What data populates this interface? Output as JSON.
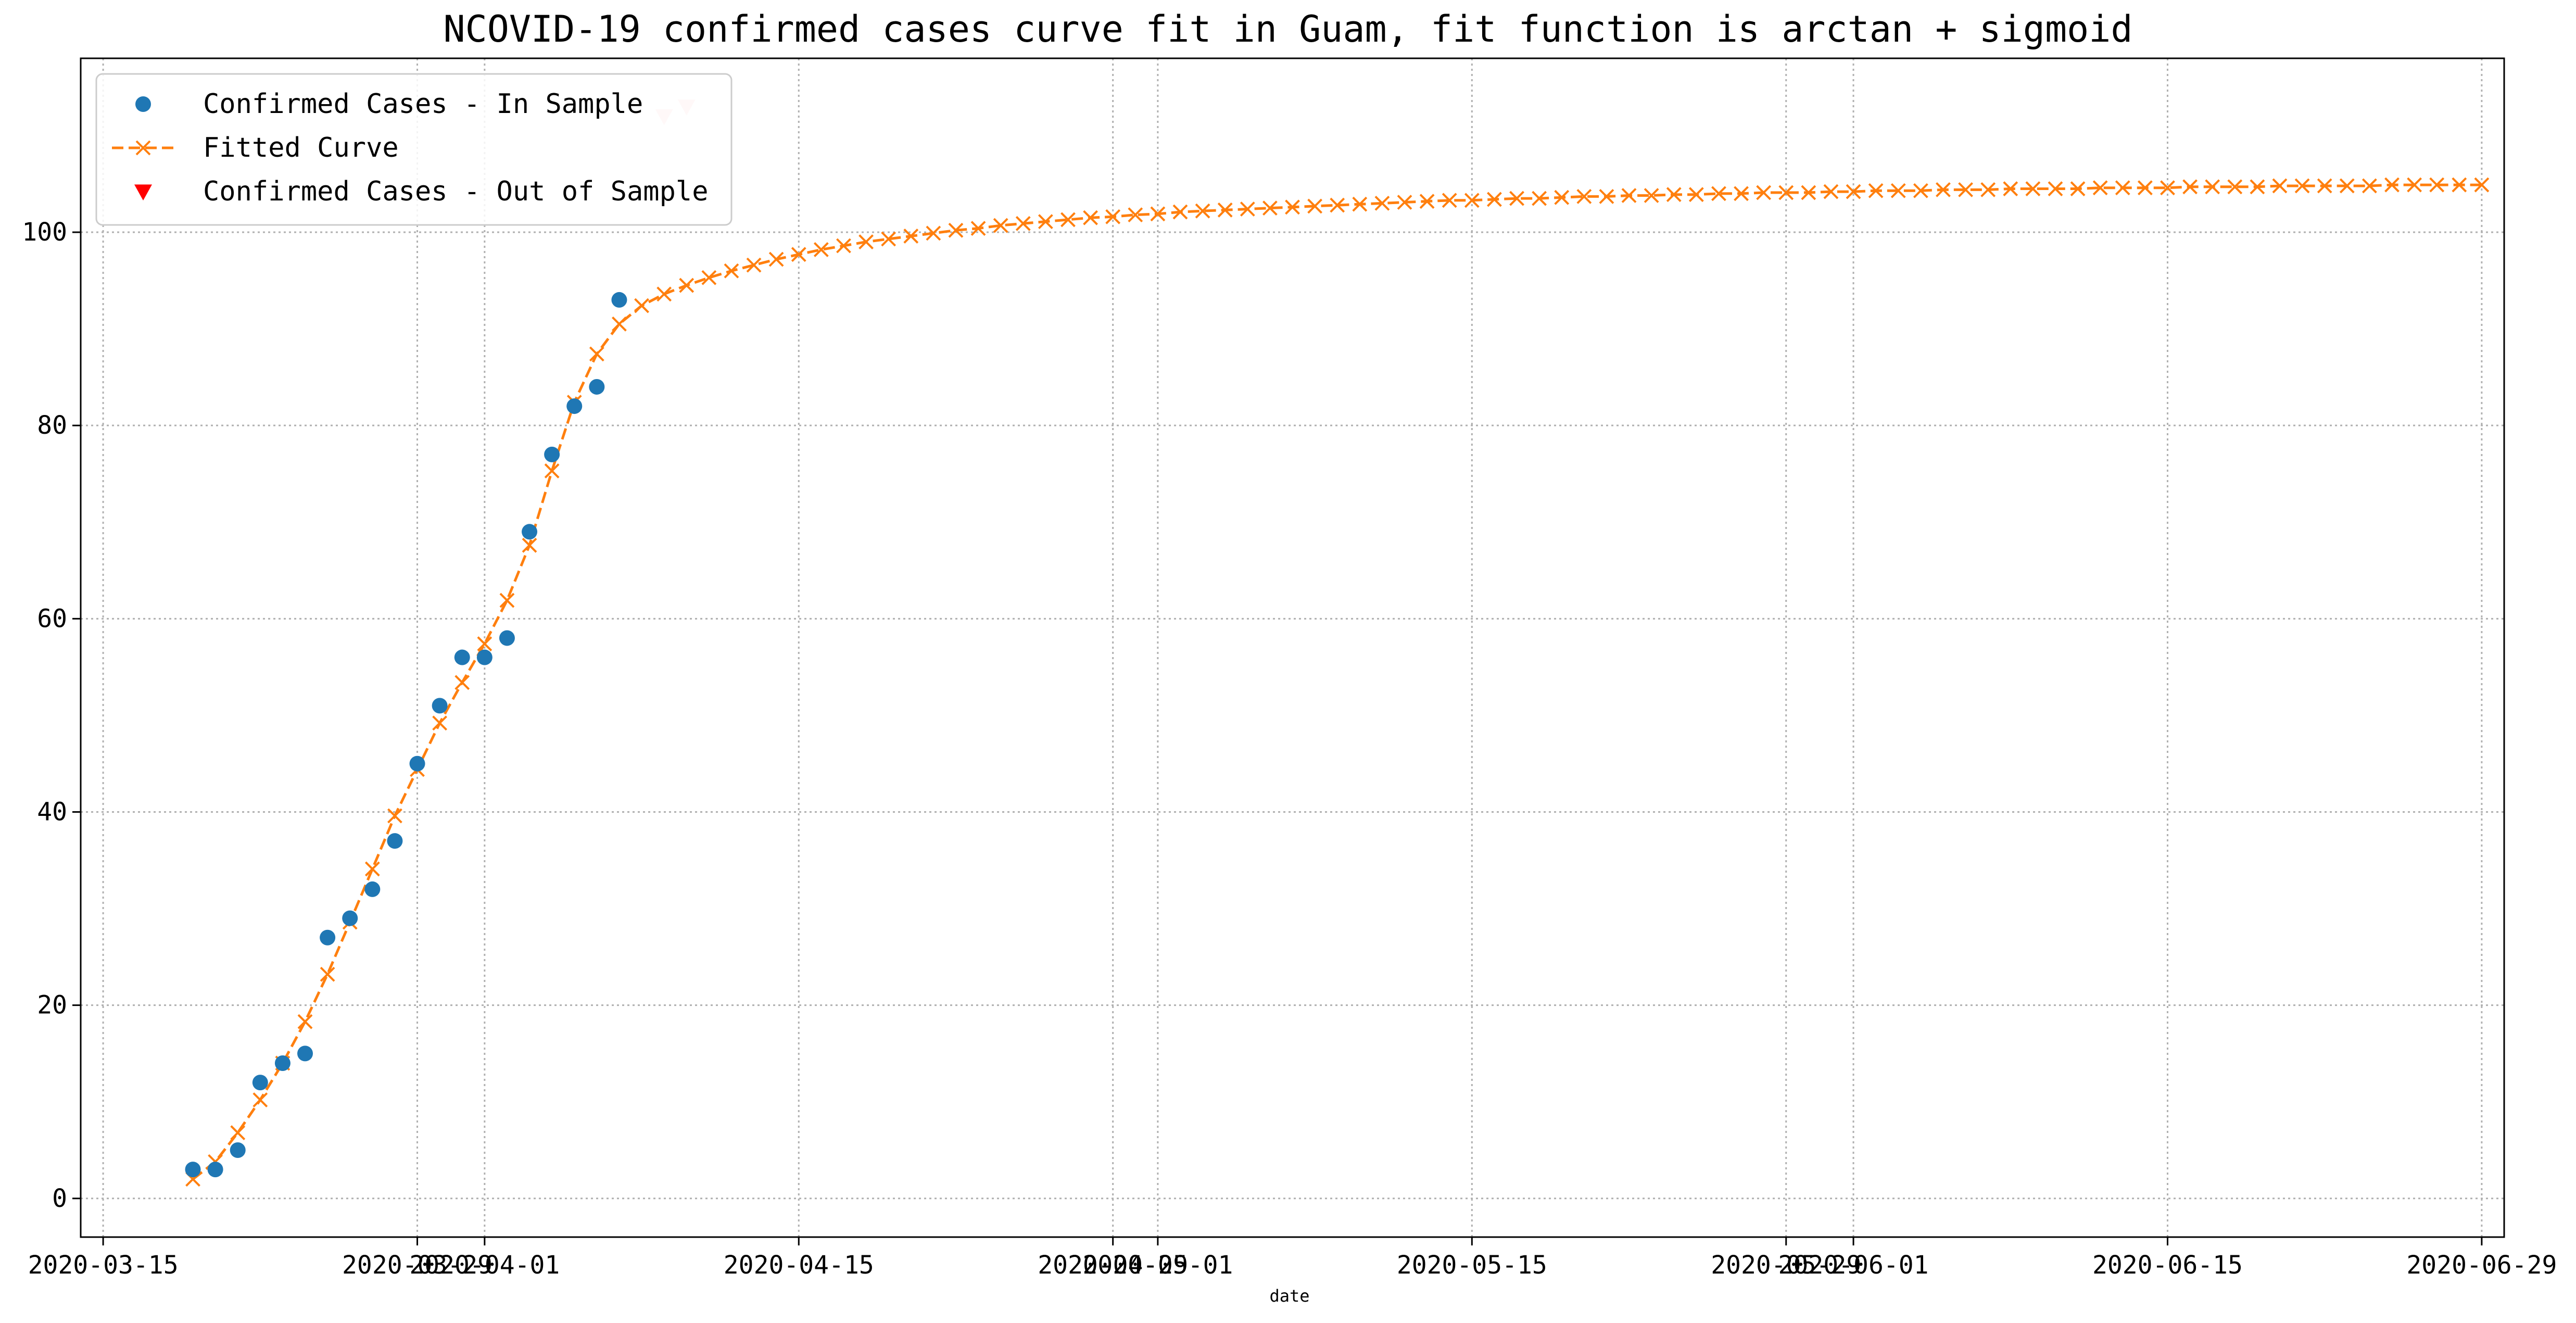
{
  "chart_data": {
    "type": "line",
    "title": "NCOVID-19 confirmed cases curve fit in Guam, fit function is arctan + sigmoid",
    "xlabel": "date",
    "ylabel": "",
    "xlim": [
      "2020-03-14",
      "2020-06-30"
    ],
    "ylim": [
      -4,
      118
    ],
    "x_ticks": [
      {
        "date": "2020-03-15",
        "label": "2020-03-15"
      },
      {
        "date": "2020-03-29",
        "label": "2020-03-29"
      },
      {
        "date": "2020-04-01",
        "label": "2020-04-01"
      },
      {
        "date": "2020-04-15",
        "label": "2020-04-15"
      },
      {
        "date": "2020-04-29",
        "label": "2020-04-29"
      },
      {
        "date": "2020-05-01",
        "label": "2020-05-01"
      },
      {
        "date": "2020-05-15",
        "label": "2020-05-15"
      },
      {
        "date": "2020-05-29",
        "label": "2020-05-29"
      },
      {
        "date": "2020-06-01",
        "label": "2020-06-01"
      },
      {
        "date": "2020-06-15",
        "label": "2020-06-15"
      },
      {
        "date": "2020-06-29",
        "label": "2020-06-29"
      }
    ],
    "y_ticks": [
      0,
      20,
      40,
      60,
      80,
      100
    ],
    "grid": true,
    "legend": {
      "position": "top-left",
      "entries": [
        "Confirmed Cases - In Sample",
        "Fitted Curve",
        "Confirmed Cases - Out of Sample"
      ]
    },
    "series": [
      {
        "name": "Confirmed Cases - In Sample",
        "kind": "scatter",
        "marker": "circle",
        "color": "#1f77b4",
        "x": [
          "2020-03-19",
          "2020-03-20",
          "2020-03-21",
          "2020-03-22",
          "2020-03-23",
          "2020-03-24",
          "2020-03-25",
          "2020-03-26",
          "2020-03-27",
          "2020-03-28",
          "2020-03-29",
          "2020-03-30",
          "2020-03-31",
          "2020-04-01",
          "2020-04-02",
          "2020-04-03",
          "2020-04-04",
          "2020-04-05",
          "2020-04-06"
        ],
        "y": [
          3,
          3,
          5,
          12,
          14,
          15,
          27,
          29,
          32,
          37,
          45,
          51,
          56,
          56,
          58,
          69,
          77,
          82,
          84
        ]
      },
      {
        "name": "Confirmed Cases - In Sample",
        "kind": "scatter",
        "marker": "circle",
        "color": "#1f77b4",
        "x": [
          "2020-04-07"
        ],
        "y": [
          93
        ]
      },
      {
        "name": "Fitted Curve",
        "kind": "line",
        "marker": "x",
        "dashed": true,
        "color": "#ff7f0e",
        "start_date": "2020-03-19",
        "y": [
          2.0,
          3.8,
          6.8,
          10.2,
          14.0,
          18.3,
          23.2,
          28.6,
          34.1,
          39.6,
          44.4,
          49.2,
          53.4,
          57.4,
          61.9,
          67.6,
          75.3,
          82.4,
          87.4,
          90.5,
          92.4,
          93.6,
          94.5,
          95.3,
          96.0,
          96.6,
          97.2,
          97.7,
          98.2,
          98.6,
          99.0,
          99.3,
          99.6,
          99.9,
          100.2,
          100.4,
          100.7,
          100.9,
          101.1,
          101.3,
          101.5,
          101.6,
          101.8,
          101.9,
          102.1,
          102.2,
          102.3,
          102.4,
          102.5,
          102.6,
          102.7,
          102.8,
          102.9,
          103.0,
          103.1,
          103.2,
          103.3,
          103.3,
          103.4,
          103.5,
          103.5,
          103.6,
          103.7,
          103.7,
          103.8,
          103.8,
          103.9,
          103.9,
          104.0,
          104.0,
          104.1,
          104.1,
          104.1,
          104.2,
          104.2,
          104.3,
          104.3,
          104.3,
          104.4,
          104.4,
          104.4,
          104.5,
          104.5,
          104.5,
          104.5,
          104.6,
          104.6,
          104.6,
          104.6,
          104.7,
          104.7,
          104.7,
          104.7,
          104.8,
          104.8,
          104.8,
          104.8,
          104.8,
          104.9,
          104.9,
          104.9,
          104.9,
          104.9
        ]
      },
      {
        "name": "Confirmed Cases - Out of Sample",
        "kind": "scatter",
        "marker": "triangle-down",
        "color": "#ff0000",
        "alpha": 0.18,
        "x": [
          "2020-04-09",
          "2020-04-10"
        ],
        "y": [
          112,
          113
        ]
      }
    ]
  }
}
